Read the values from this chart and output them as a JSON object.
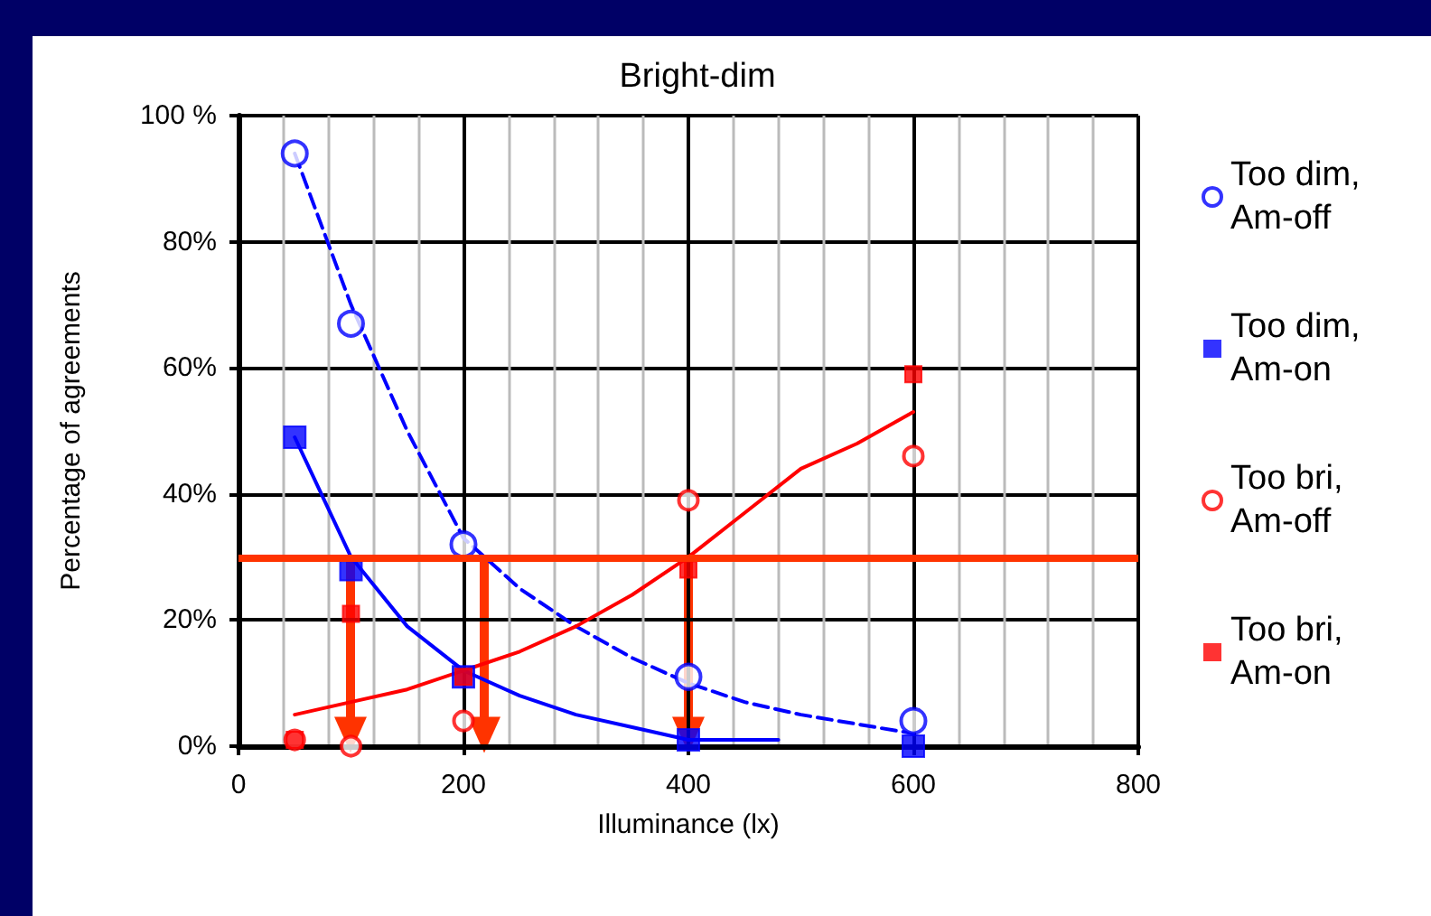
{
  "chart_data": {
    "type": "scatter",
    "title": "Bright-dim",
    "xlabel": "Illuminance (lx)",
    "ylabel": "Percentage of agreements",
    "xlim": [
      0,
      800
    ],
    "xticks": [
      0,
      200,
      400,
      600,
      800
    ],
    "ylim": [
      0,
      100
    ],
    "yticks": [
      {
        "value": 0,
        "label": "0%"
      },
      {
        "value": 20,
        "label": "20%"
      },
      {
        "value": 40,
        "label": "40%"
      },
      {
        "value": 60,
        "label": "60%"
      },
      {
        "value": 80,
        "label": "80%"
      },
      {
        "value": 100,
        "label": "100 %"
      }
    ],
    "grid": true,
    "legend": "right",
    "series": [
      {
        "name": "Too dim, Am-off",
        "marker": "circle",
        "color": "#0000ff",
        "x": [
          50,
          100,
          200,
          400,
          600
        ],
        "values": [
          94,
          67,
          32,
          11,
          4
        ]
      },
      {
        "name": "Too dim, Am-on",
        "marker": "square",
        "color": "#0000ff",
        "x": [
          50,
          100,
          200,
          400,
          600
        ],
        "values": [
          49,
          28,
          11,
          1,
          0
        ]
      },
      {
        "name": "Too bri, Am-off",
        "marker": "circle",
        "color": "#ff0000",
        "x": [
          50,
          100,
          200,
          400,
          600
        ],
        "values": [
          1,
          0,
          4,
          39,
          46
        ]
      },
      {
        "name": "Too bri, Am-on",
        "marker": "square",
        "color": "#ff0000",
        "x": [
          50,
          100,
          200,
          400,
          600
        ],
        "values": [
          1,
          21,
          11,
          28,
          59
        ]
      },
      {
        "type": "line",
        "line_style": "dashed",
        "color": "#0000ff",
        "x": [
          50,
          100,
          150,
          200,
          250,
          300,
          350,
          400,
          450,
          500,
          550,
          600
        ],
        "values": [
          94,
          70,
          50,
          33,
          25,
          19,
          14,
          10,
          7,
          5,
          3.5,
          2
        ]
      },
      {
        "type": "line",
        "line_style": "solid",
        "color": "#0000ff",
        "x": [
          50,
          100,
          150,
          200,
          250,
          300,
          350,
          400,
          480
        ],
        "values": [
          49,
          30,
          19,
          12,
          8,
          5,
          3,
          1,
          1
        ]
      },
      {
        "type": "line",
        "line_style": "solid",
        "color": "#ff0000",
        "x": [
          50,
          100,
          150,
          200,
          250,
          300,
          350,
          400,
          450,
          500,
          550,
          600
        ],
        "values": [
          5,
          7,
          9,
          12,
          15,
          19,
          24,
          30,
          37,
          44,
          48,
          53
        ]
      }
    ],
    "ref_lines": [
      {
        "axis": "y",
        "value": 30,
        "color": "#ff3300"
      }
    ]
  }
}
